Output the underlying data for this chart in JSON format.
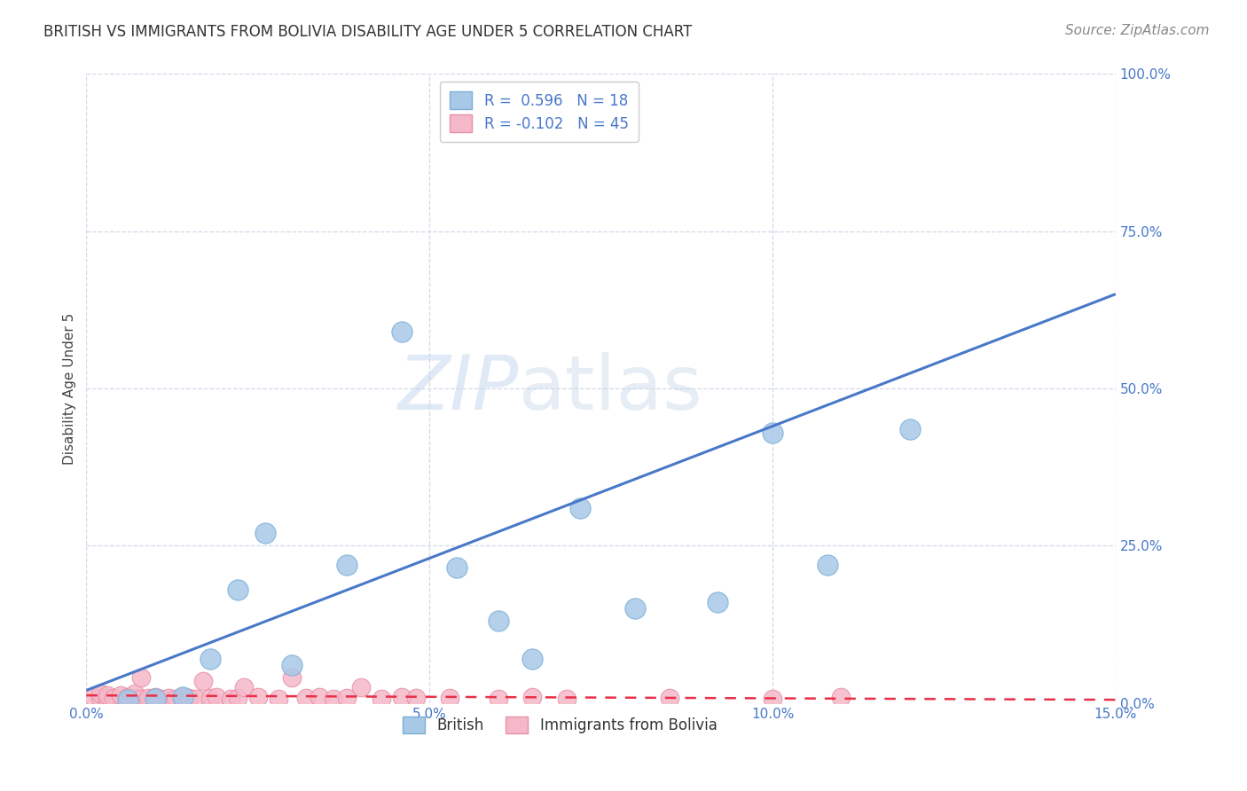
{
  "title": "BRITISH VS IMMIGRANTS FROM BOLIVIA DISABILITY AGE UNDER 5 CORRELATION CHART",
  "source": "Source: ZipAtlas.com",
  "ylabel": "Disability Age Under 5",
  "xlabel": "",
  "xlim": [
    0.0,
    0.15
  ],
  "ylim": [
    0.0,
    1.0
  ],
  "xticks": [
    0.0,
    0.05,
    0.1,
    0.15
  ],
  "xtick_labels": [
    "0.0%",
    "5.0%",
    "10.0%",
    "15.0%"
  ],
  "yticks": [
    0.0,
    0.25,
    0.5,
    0.75,
    1.0
  ],
  "ytick_labels": [
    "0.0%",
    "25.0%",
    "50.0%",
    "75.0%",
    "100.0%"
  ],
  "british_color": "#a8c8e8",
  "british_edge_color": "#7bafd4",
  "bolivia_color": "#f5b8c8",
  "bolivia_edge_color": "#e890a8",
  "trend_british_color": "#4878c8",
  "trend_bolivia_color": "#e83048",
  "british_R": 0.596,
  "british_N": 18,
  "bolivia_R": -0.102,
  "bolivia_N": 45,
  "british_x": [
    0.006,
    0.01,
    0.014,
    0.018,
    0.022,
    0.026,
    0.03,
    0.038,
    0.046,
    0.054,
    0.06,
    0.065,
    0.072,
    0.08,
    0.092,
    0.1,
    0.108,
    0.12
  ],
  "british_y": [
    0.005,
    0.007,
    0.01,
    0.07,
    0.18,
    0.27,
    0.06,
    0.22,
    0.59,
    0.215,
    0.13,
    0.07,
    0.31,
    0.15,
    0.16,
    0.43,
    0.22,
    0.435
  ],
  "bolivia_x": [
    0.001,
    0.002,
    0.002,
    0.003,
    0.003,
    0.004,
    0.005,
    0.006,
    0.006,
    0.007,
    0.007,
    0.008,
    0.008,
    0.009,
    0.01,
    0.011,
    0.012,
    0.013,
    0.014,
    0.015,
    0.016,
    0.017,
    0.018,
    0.019,
    0.021,
    0.022,
    0.023,
    0.025,
    0.028,
    0.03,
    0.032,
    0.034,
    0.036,
    0.038,
    0.04,
    0.043,
    0.046,
    0.048,
    0.053,
    0.06,
    0.065,
    0.07,
    0.085,
    0.1,
    0.11
  ],
  "bolivia_y": [
    0.01,
    0.008,
    0.015,
    0.006,
    0.012,
    0.008,
    0.012,
    0.006,
    0.01,
    0.008,
    0.015,
    0.006,
    0.04,
    0.008,
    0.01,
    0.006,
    0.008,
    0.006,
    0.01,
    0.008,
    0.006,
    0.035,
    0.008,
    0.01,
    0.006,
    0.008,
    0.025,
    0.01,
    0.006,
    0.04,
    0.008,
    0.01,
    0.006,
    0.008,
    0.025,
    0.006,
    0.01,
    0.008,
    0.008,
    0.006,
    0.01,
    0.006,
    0.008,
    0.006,
    0.01
  ],
  "british_trend_x": [
    0.0,
    0.15
  ],
  "british_trend_y": [
    0.02,
    0.65
  ],
  "bolivia_trend_x": [
    0.0,
    0.15
  ],
  "bolivia_trend_y": [
    0.012,
    0.005
  ],
  "watermark_line1": "ZIP",
  "watermark_line2": "atlas",
  "grid_color": "#d0d8e8",
  "background_color": "#ffffff",
  "title_fontsize": 12,
  "axis_fontsize": 11,
  "tick_fontsize": 11,
  "legend_fontsize": 12,
  "source_fontsize": 11
}
